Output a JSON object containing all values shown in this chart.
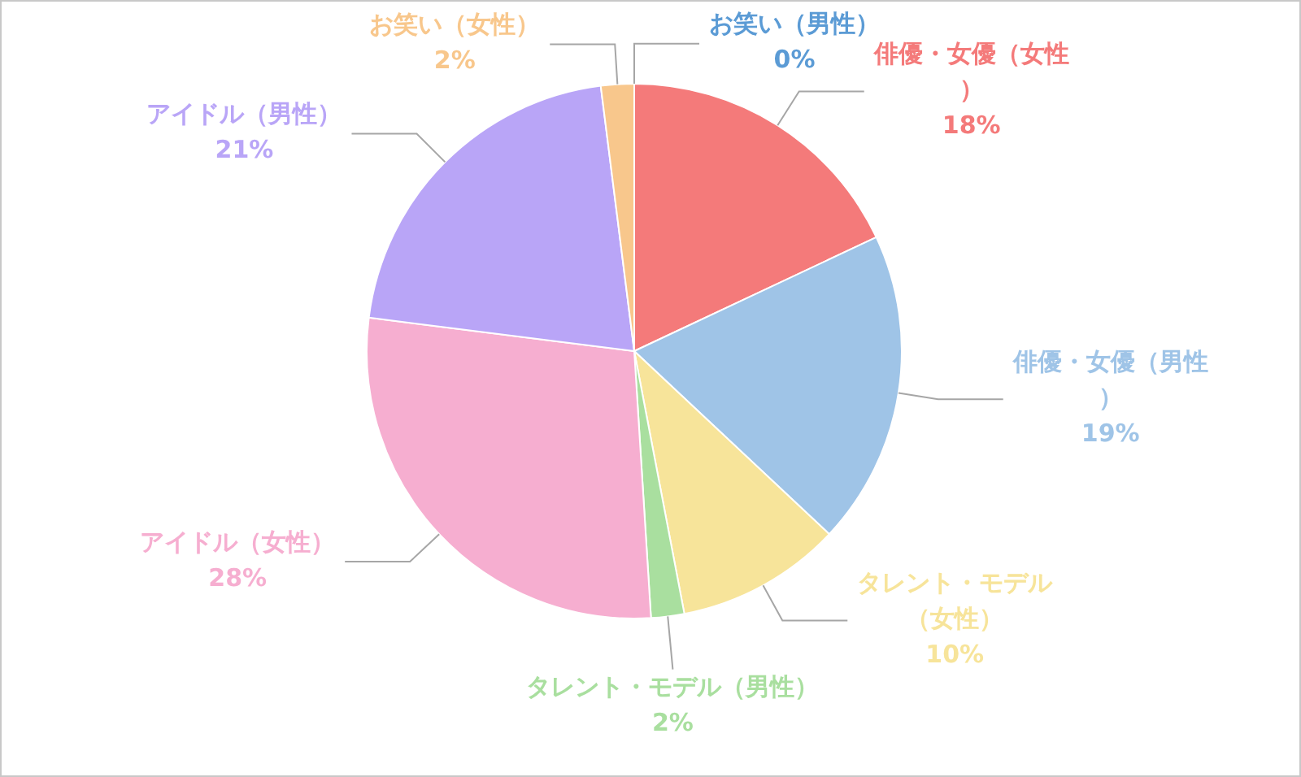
{
  "chart_data": {
    "type": "pie",
    "categories": [
      "お笑い（男性）",
      "俳優・女優（女性）",
      "俳優・女優（男性）",
      "タレント・モデル（女性）",
      "タレント・モデル（男性）",
      "アイドル（女性）",
      "アイドル（男性）",
      "お笑い（女性）"
    ],
    "values": [
      0,
      18,
      19,
      10,
      2,
      28,
      21,
      2
    ],
    "value_labels": [
      "0%",
      "18%",
      "19%",
      "10%",
      "2%",
      "28%",
      "21%",
      "2%"
    ],
    "colors": [
      "#5b9bd5",
      "#f47a7a",
      "#9fc4e7",
      "#f7e49a",
      "#a9df9f",
      "#f6aed0",
      "#b9a5f7",
      "#f8c78c"
    ],
    "legend": false
  }
}
